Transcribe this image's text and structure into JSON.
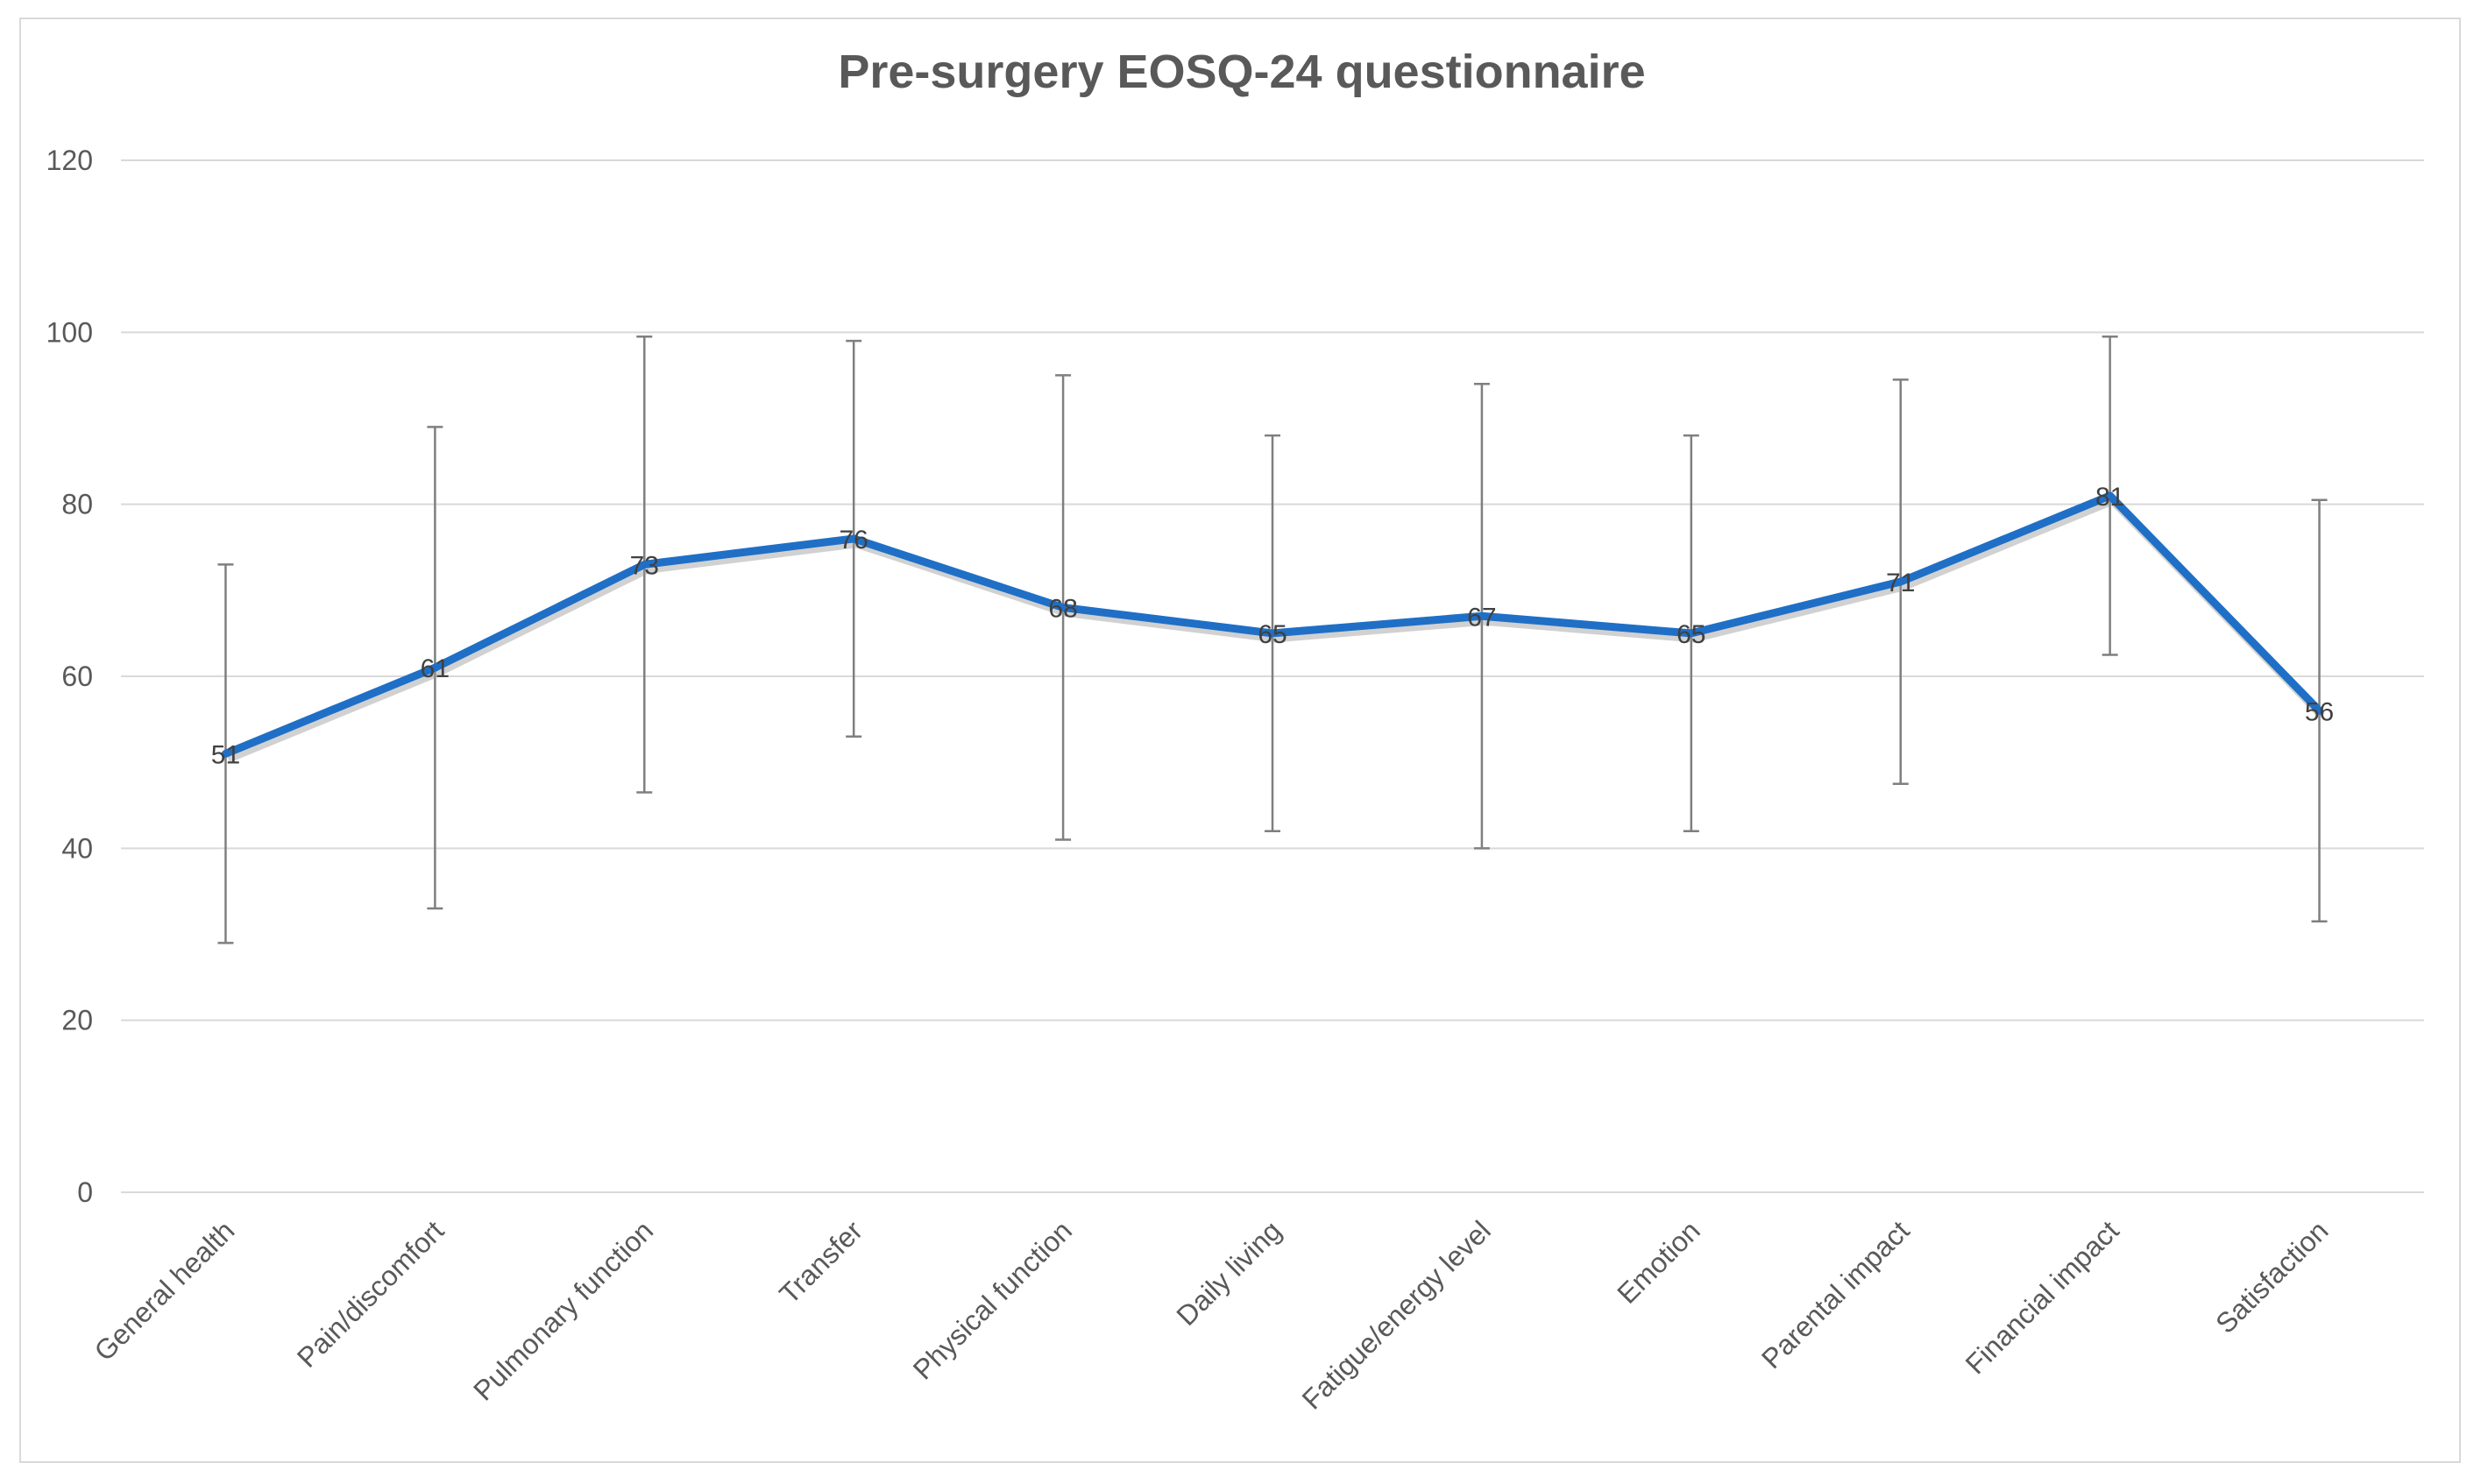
{
  "chart_data": {
    "type": "line",
    "title": "Pre-surgery EOSQ-24 questionnaire",
    "xlabel": "",
    "ylabel": "",
    "ylim": [
      0,
      120
    ],
    "yticks": [
      0,
      20,
      40,
      60,
      80,
      100,
      120
    ],
    "grid": true,
    "legend": "none",
    "categories": [
      "General health",
      "Pain/discomfort",
      "Pulmonary function",
      "Transfer",
      "Physical function",
      "Daily living",
      "Fatigue/energy level",
      "Emotion",
      "Parental impact",
      "Financial impact",
      "Satisfaction"
    ],
    "series": [
      {
        "name": "Mean score",
        "color": "#1f6fc6",
        "values": [
          51,
          61,
          73,
          76,
          68,
          65,
          67,
          65,
          71,
          81,
          56
        ],
        "error_low": [
          29,
          33,
          46.5,
          53,
          41,
          42,
          40,
          42,
          47.5,
          62.5,
          31.5
        ],
        "error_high": [
          73,
          89,
          99.5,
          99,
          95,
          88,
          94,
          88,
          94.5,
          99.5,
          80.5
        ]
      }
    ],
    "data_labels": [
      "51",
      "61",
      "73",
      "76",
      "68",
      "65",
      "67",
      "65",
      "71",
      "81",
      "56"
    ]
  }
}
